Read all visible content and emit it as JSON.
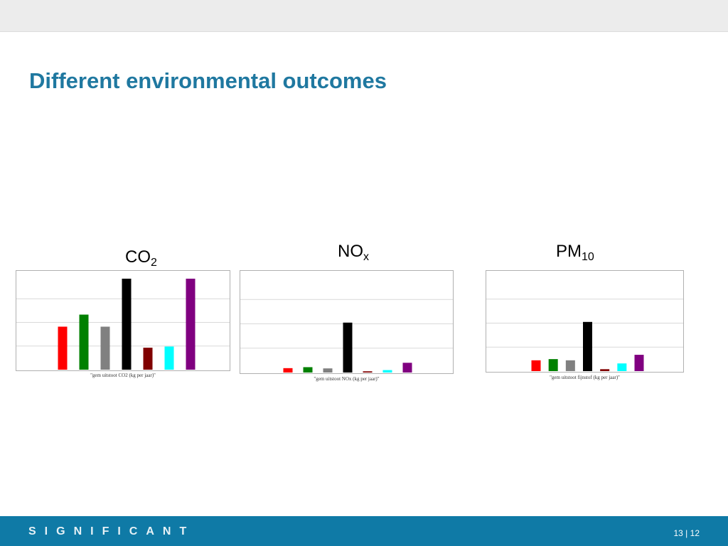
{
  "slide": {
    "title": "Different environmental outcomes"
  },
  "footer": {
    "logo_text": "SIGNIFICANT",
    "page_current": "13",
    "page_separator": "|",
    "page_total": "12"
  },
  "colors": {
    "series": [
      "#ff0000",
      "#008000",
      "#808080",
      "#000000",
      "#800000",
      "#00ffff",
      "#800080"
    ],
    "gridline": "#d9d9d9"
  },
  "chart_data": [
    {
      "type": "bar",
      "pollutant": {
        "base": "CO",
        "sub": "2"
      },
      "xlabel": "\"gem uitstoot CO2 (kg per jaar)\"",
      "ylim": [
        0,
        4
      ],
      "grid": true,
      "values": [
        1.82,
        2.33,
        1.82,
        3.85,
        0.93,
        0.98,
        3.85
      ]
    },
    {
      "type": "bar",
      "pollutant": {
        "base": "NO",
        "sub": "x"
      },
      "xlabel": "\"gem uitstoot NOx (kg per jaar)\"",
      "ylim": [
        0,
        4
      ],
      "grid": true,
      "values": [
        0.18,
        0.22,
        0.17,
        2.05,
        0.05,
        0.1,
        0.4
      ]
    },
    {
      "type": "bar",
      "pollutant": {
        "base": "PM",
        "sub": "10"
      },
      "xlabel": "\"gem uitstoot fijnstof (kg per jaar)\"",
      "ylim": [
        0,
        4
      ],
      "grid": true,
      "values": [
        0.45,
        0.5,
        0.45,
        2.05,
        0.08,
        0.32,
        0.68
      ]
    }
  ]
}
